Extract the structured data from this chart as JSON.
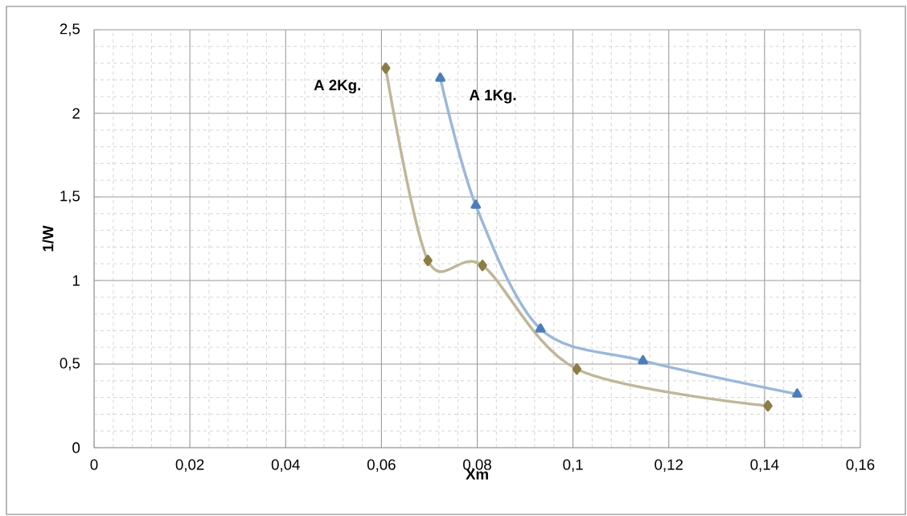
{
  "chart_data": {
    "type": "line",
    "xlabel": "Xm",
    "ylabel": "1/W",
    "xlim": [
      0,
      0.16
    ],
    "ylim": [
      0,
      2.5
    ],
    "xticks": [
      0,
      {
        "value": 0.02,
        "label": "0,02"
      },
      {
        "value": 0.04,
        "label": "0,04"
      },
      {
        "value": 0.06,
        "label": "0,06"
      },
      {
        "value": 0.08,
        "label": "0,08"
      },
      {
        "value": 0.1,
        "label": "0,1"
      },
      {
        "value": 0.12,
        "label": "0,12"
      },
      {
        "value": 0.14,
        "label": "0,14"
      },
      {
        "value": 0.16,
        "label": "0,16"
      }
    ],
    "yticks": [
      0,
      {
        "value": 0.5,
        "label": "0,5"
      },
      1,
      {
        "value": 1.5,
        "label": "1,5"
      },
      2,
      {
        "value": 2.5,
        "label": "2,5"
      }
    ],
    "grid": true,
    "legend": false,
    "series": [
      {
        "name": "A  2Kg.",
        "color": "#8b7d45",
        "marker": "diamond",
        "x": [
          0.0609,
          0.0697,
          0.0811,
          0.1008,
          0.1407
        ],
        "values": [
          2.27,
          1.12,
          1.09,
          0.47,
          0.25
        ]
      },
      {
        "name": "A  1Kg.",
        "color": "#4a7ebb",
        "marker": "triangle",
        "x": [
          0.0723,
          0.0797,
          0.0932,
          0.1146,
          0.1468
        ],
        "values": [
          2.21,
          1.45,
          0.71,
          0.52,
          0.32
        ]
      }
    ]
  }
}
